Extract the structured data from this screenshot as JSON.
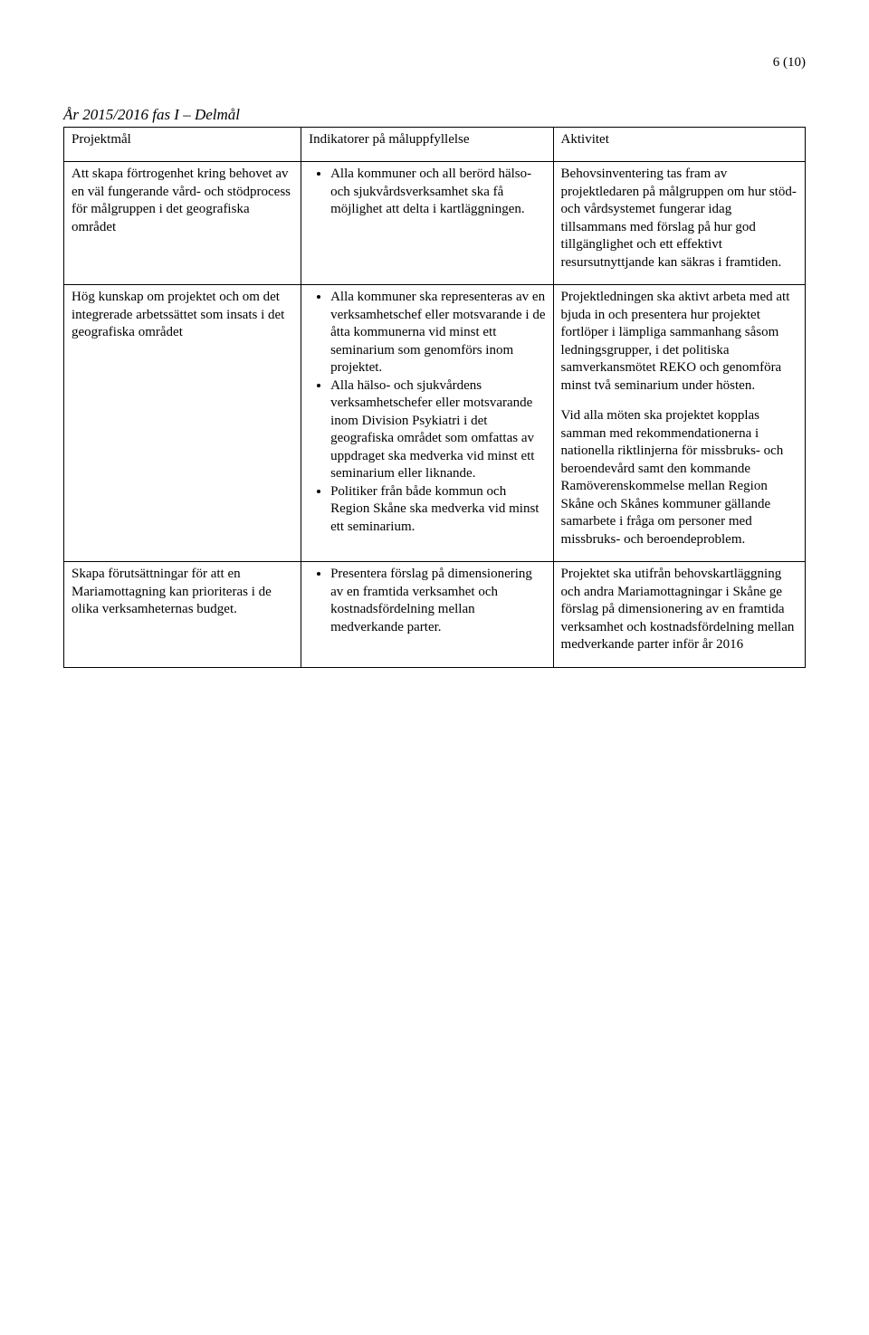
{
  "page_number": "6 (10)",
  "heading": "År 2015/2016 fas I – Delmål",
  "headers": {
    "c1": "Projektmål",
    "c2": "Indikatorer på måluppfyllelse",
    "c3": "Aktivitet"
  },
  "row1": {
    "c1": "Att skapa förtrogenhet kring behovet av en väl fungerande vård- och stödprocess för målgruppen i det geografiska området",
    "c2_bullet": "Alla kommuner och all berörd hälso- och sjukvårdsverksamhet ska få möjlighet att delta i kartläggningen.",
    "c3": "Behovsinventering tas fram av projektledaren på målgruppen om hur stöd- och vårdsystemet fungerar idag tillsammans med förslag på hur god tillgänglighet och ett effektivt resursutnyttjande kan säkras i framtiden."
  },
  "row2": {
    "c1": "Hög kunskap om projektet och om det integrerade arbetssättet som insats i det geografiska området",
    "c2_b1": "Alla kommuner ska representeras av en verksamhetschef eller motsvarande i de åtta kommunerna vid minst ett seminarium som genomförs inom projektet.",
    "c2_b2": "Alla hälso- och sjukvårdens verksamhetschefer eller motsvarande inom Division Psykiatri i det geografiska området som omfattas av uppdraget ska medverka vid minst ett seminarium eller liknande.",
    "c2_b3": "Politiker från både kommun och Region Skåne ska medverka vid minst ett seminarium.",
    "c3_p1": "Projektledningen ska aktivt arbeta med att bjuda in och presentera hur projektet fortlöper i lämpliga sammanhang såsom ledningsgrupper, i det politiska samverkansmötet REKO och genomföra minst två seminarium under hösten.",
    "c3_p2": "Vid alla möten ska projektet kopplas samman med rekommendationerna i nationella riktlinjerna för missbruks- och beroendevård samt den kommande Ramöverenskommelse mellan Region Skåne och Skånes kommuner gällande samarbete i fråga om personer med missbruks- och beroendeproblem."
  },
  "row3": {
    "c1": "Skapa förutsättningar för att en Mariamottagning kan prioriteras i de olika verksamheternas budget.",
    "c2_bullet": "Presentera förslag på dimensionering av en framtida verksamhet och kostnadsfördelning mellan medverkande parter.",
    "c3": "Projektet ska utifrån behovskartläggning och andra Mariamottagningar i Skåne ge förslag på dimensionering av en framtida verksamhet och kostnadsfördelning mellan medverkande parter inför år 2016"
  }
}
